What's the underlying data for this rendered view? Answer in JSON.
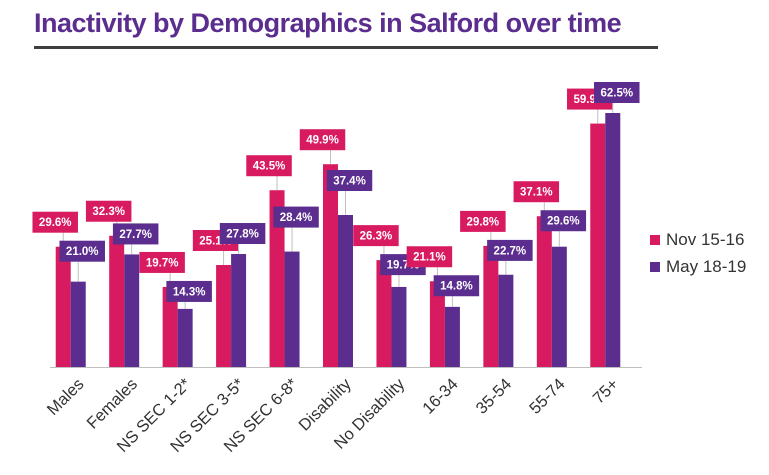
{
  "title": "Inactivity by Demographics in Salford over time",
  "colors": {
    "series1": "#d81b60",
    "series2": "#5b2d8e",
    "axis": "#bfbfbf",
    "leader": "#bfbfbf",
    "label_text": "#ffffff"
  },
  "legend": {
    "placement": "right",
    "items": [
      "Nov 15-16",
      "May 18-19"
    ]
  },
  "chart_data": {
    "type": "bar",
    "title": "Inactivity by Demographics in Salford over time",
    "xlabel": "",
    "ylabel": "",
    "unit": "%",
    "ylim": [
      0,
      62.5
    ],
    "grid": false,
    "legend": "right",
    "categories": [
      "Males",
      "Females",
      "NS SEC 1-2*",
      "NS SEC 3-5*",
      "NS SEC 6-8*",
      "Disability",
      "No Disability",
      "16-34",
      "35-54",
      "55-74",
      "75+"
    ],
    "series": [
      {
        "name": "Nov 15-16",
        "values": [
          29.6,
          32.3,
          19.7,
          25.1,
          43.5,
          49.9,
          26.3,
          21.1,
          29.8,
          37.1,
          59.9
        ],
        "labels": [
          "29.6%",
          "32.3%",
          "19.7%",
          "25.1%",
          "43.5%",
          "49.9%",
          "26.3%",
          "21.1%",
          "29.8%",
          "37.1%",
          "59.9%"
        ]
      },
      {
        "name": "May 18-19",
        "values": [
          21.0,
          27.7,
          14.3,
          27.8,
          28.4,
          37.4,
          19.7,
          14.8,
          22.7,
          29.6,
          62.5
        ],
        "labels": [
          "21.0%",
          "27.7%",
          "14.3%",
          "27.8%",
          "28.4%",
          "37.4%",
          "19.7%",
          "14.8%",
          "22.7%",
          "29.6%",
          "62.5%"
        ]
      }
    ]
  }
}
